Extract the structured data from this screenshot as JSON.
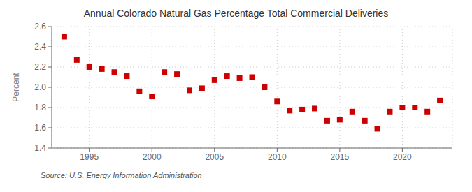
{
  "chart_data": {
    "type": "scatter",
    "title": "Annual Colorado Natural Gas Percentage Total Commercial Deliveries",
    "ylabel": "Percent",
    "source": "Source: U.S. Energy Information Administration",
    "x": [
      1993,
      1994,
      1995,
      1996,
      1997,
      1998,
      1999,
      2000,
      2001,
      2002,
      2003,
      2004,
      2005,
      2006,
      2007,
      2008,
      2009,
      2010,
      2011,
      2012,
      2013,
      2014,
      2015,
      2016,
      2017,
      2018,
      2019,
      2020,
      2021,
      2022,
      2023
    ],
    "values": [
      2.5,
      2.27,
      2.2,
      2.18,
      2.15,
      2.11,
      1.96,
      1.91,
      2.15,
      2.13,
      1.97,
      1.99,
      2.07,
      2.11,
      2.09,
      2.1,
      2.0,
      1.86,
      1.77,
      1.78,
      1.79,
      1.67,
      1.68,
      1.76,
      1.67,
      1.59,
      1.76,
      1.8,
      1.8,
      1.76,
      1.87
    ],
    "color": "#cc0000",
    "marker": "square",
    "xlim": [
      1992,
      2024
    ],
    "ylim": [
      1.4,
      2.6
    ],
    "xticks": [
      1995,
      2000,
      2005,
      2010,
      2015,
      2020
    ],
    "yticks": [
      1.4,
      1.6,
      1.8,
      {
        "value": 2.0,
        "label": "2.0"
      },
      2.2,
      2.4,
      2.6
    ],
    "grid": true
  }
}
